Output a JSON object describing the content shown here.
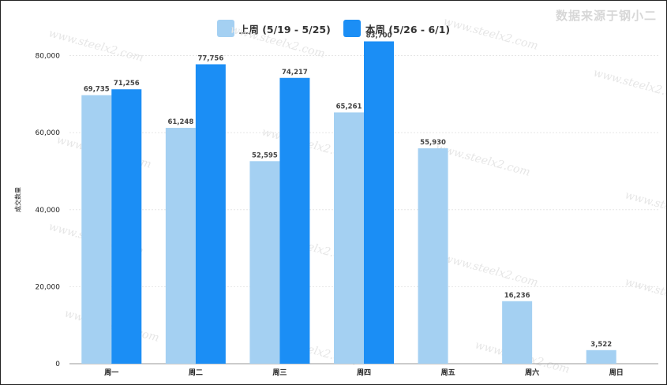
{
  "source_note": "数据来源于钢小二",
  "watermark_text": "www.steelx2.com",
  "colors": {
    "last_week": "#a4d0f2",
    "this_week": "#1b8ef5",
    "grid": "#e5e5e5"
  },
  "chart_data": {
    "type": "bar",
    "title": "",
    "xlabel": "",
    "ylabel": "成交数量",
    "categories": [
      "周一",
      "周二",
      "周三",
      "周四",
      "周五",
      "周六",
      "周日"
    ],
    "series": [
      {
        "name": "上周 (5/19 - 5/25)",
        "values": [
          69735,
          61248,
          52595,
          65261,
          55930,
          16236,
          3522
        ]
      },
      {
        "name": "本周 (5/26 - 6/1)",
        "values": [
          71256,
          77756,
          74217,
          83700,
          null,
          null,
          null
        ]
      }
    ],
    "ylim": [
      0,
      84000
    ],
    "yticks": [
      0,
      20000,
      40000,
      60000,
      80000
    ],
    "ytick_labels": [
      "0",
      "20,000",
      "40,000",
      "60,000",
      "80,000"
    ],
    "grid": true,
    "legend_position": "top-center"
  }
}
